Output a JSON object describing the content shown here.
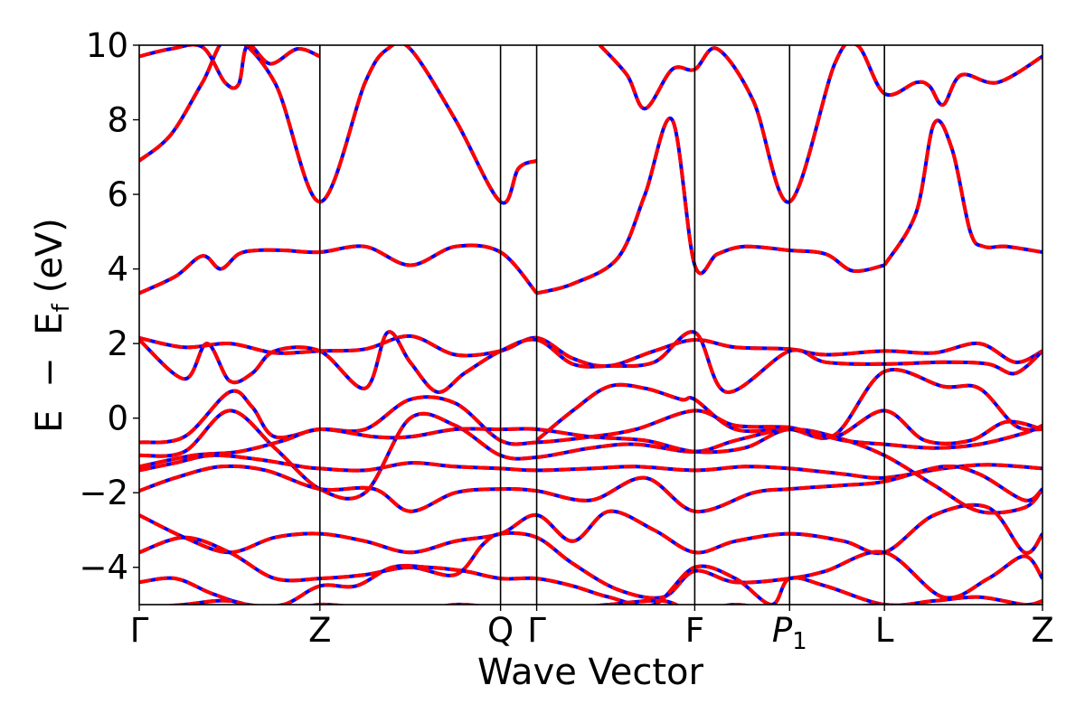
{
  "chart_data": {
    "type": "line",
    "xlabel": "Wave Vector",
    "ylabel": {
      "E": "E",
      "minus": "−",
      "Ef_main": "E",
      "Ef_sub": "f",
      "unit": "(eV)"
    },
    "ylim": [
      -5,
      10
    ],
    "yticks": [
      -4,
      -2,
      0,
      2,
      4,
      6,
      8,
      10
    ],
    "ytick_labels": [
      "−4",
      "−2",
      "0",
      "2",
      "4",
      "6",
      "8",
      "10"
    ],
    "xlim": [
      0,
      10
    ],
    "kpoints": [
      {
        "label": "Γ",
        "x": 0.0
      },
      {
        "label": "Z",
        "x": 2.0
      },
      {
        "label": "Q",
        "x": 4.0
      },
      {
        "label": "Γ",
        "x": 4.4
      },
      {
        "label": "F",
        "x": 6.15
      },
      {
        "label": "P1",
        "main": "P",
        "sub": "1",
        "italic": true,
        "x": 7.2
      },
      {
        "label": "L",
        "x": 8.25
      },
      {
        "label": "Z",
        "x": 10.0
      }
    ],
    "grid": false,
    "series_style": [
      {
        "color": "#0000ff",
        "dash": "solid"
      },
      {
        "color": "#ff0000",
        "dash": "dashed"
      }
    ],
    "bands": [
      {
        "x": [
          0,
          0.35,
          0.7,
          1.0,
          1.5,
          2.0,
          2.5,
          2.75,
          3.0,
          3.5,
          4.0,
          4.2,
          4.4
        ],
        "y": [
          6.9,
          7.6,
          9.0,
          10.2,
          9.0,
          5.8,
          9.0,
          9.9,
          9.9,
          8.0,
          5.8,
          6.7,
          6.9
        ]
      },
      {
        "x": [
          0,
          0.35,
          0.7,
          0.95,
          1.1,
          1.2,
          1.45,
          1.75,
          2.0
        ],
        "y": [
          9.7,
          9.9,
          9.95,
          9.0,
          8.95,
          10.0,
          9.5,
          9.9,
          9.7
        ]
      },
      {
        "x": [
          4.4,
          4.8,
          5.3,
          5.6,
          5.9,
          6.15,
          6.4,
          6.7,
          7.2,
          7.6,
          7.9,
          8.25
        ],
        "y": [
          3.35,
          3.6,
          4.3,
          6.0,
          8.0,
          4.1,
          4.4,
          4.6,
          4.5,
          4.4,
          3.95,
          4.1
        ]
      },
      {
        "x": [
          5.1,
          5.4,
          5.6,
          5.9,
          6.15,
          6.4,
          6.8,
          7.2,
          7.7,
          7.95,
          8.25,
          8.6,
          8.75,
          8.9,
          9.1,
          9.5,
          10.0
        ],
        "y": [
          10.0,
          9.2,
          8.3,
          9.35,
          9.35,
          9.9,
          8.5,
          5.8,
          9.5,
          10.0,
          8.7,
          9.0,
          8.9,
          8.4,
          9.2,
          9.0,
          9.7
        ]
      },
      {
        "x": [
          8.25,
          8.6,
          8.8,
          9.0,
          9.2,
          9.35,
          9.6,
          10.0
        ],
        "y": [
          4.1,
          5.5,
          7.9,
          7.2,
          5.0,
          4.6,
          4.6,
          4.45
        ]
      },
      {
        "x": [
          0,
          0.4,
          0.7,
          0.9,
          1.1,
          1.3,
          1.6,
          2.0,
          2.5,
          3.0,
          3.5,
          4.0,
          4.4
        ],
        "y": [
          3.35,
          3.8,
          4.35,
          4.0,
          4.4,
          4.5,
          4.5,
          4.45,
          4.6,
          4.1,
          4.6,
          4.45,
          3.35
        ]
      },
      {
        "x": [
          0,
          0.5,
          1.0,
          1.5,
          2.0,
          2.5,
          3.0,
          3.5,
          4.0,
          4.4,
          4.8,
          5.2,
          5.7,
          6.15,
          6.6,
          7.2,
          7.6,
          8.25,
          8.8,
          9.3,
          9.7,
          10.0
        ],
        "y": [
          2.15,
          1.9,
          2.0,
          1.75,
          1.8,
          1.85,
          2.2,
          1.7,
          1.8,
          2.15,
          1.6,
          1.4,
          1.8,
          2.1,
          1.9,
          1.85,
          1.7,
          1.8,
          1.75,
          2.0,
          1.5,
          1.8
        ]
      },
      {
        "x": [
          0,
          0.5,
          0.75,
          1.0,
          1.25,
          1.5,
          2.0,
          2.5,
          2.75,
          3.0,
          3.3,
          3.6,
          4.0,
          4.4,
          4.8,
          5.2,
          5.7,
          6.15,
          6.5,
          7.2,
          7.6,
          8.25,
          8.9,
          9.4,
          9.7,
          10.0
        ],
        "y": [
          2.1,
          1.05,
          2.0,
          1.0,
          1.2,
          1.8,
          1.8,
          0.8,
          2.3,
          1.5,
          0.7,
          1.2,
          1.8,
          2.1,
          1.45,
          1.4,
          1.5,
          2.3,
          0.7,
          1.8,
          1.5,
          1.45,
          1.5,
          1.45,
          1.2,
          1.8
        ]
      },
      {
        "x": [
          4.4,
          4.8,
          5.2,
          5.6,
          6.0,
          6.15,
          6.6,
          7.2,
          7.7,
          8.25,
          8.9,
          9.3,
          9.7,
          10.0
        ],
        "y": [
          -0.6,
          0.2,
          0.85,
          0.8,
          0.5,
          0.5,
          -0.3,
          -0.3,
          -0.45,
          1.25,
          0.85,
          0.8,
          -0.2,
          -0.3
        ]
      },
      {
        "x": [
          0,
          0.5,
          1.0,
          1.25,
          1.5,
          2.0,
          2.5,
          3.0,
          3.5,
          4.0,
          4.4,
          5.0,
          5.5,
          6.15,
          6.6,
          7.2,
          7.7,
          8.25,
          8.7,
          9.2,
          9.6,
          10.0
        ],
        "y": [
          -0.65,
          -0.5,
          0.7,
          0.3,
          -0.5,
          -0.3,
          -0.3,
          0.5,
          0.4,
          -0.6,
          -0.65,
          -0.5,
          -0.3,
          0.2,
          -0.2,
          -0.25,
          -0.5,
          0.2,
          -0.6,
          -0.6,
          -0.1,
          -0.3
        ]
      },
      {
        "x": [
          0,
          0.5,
          1.0,
          1.5,
          2.0,
          2.5,
          3.0,
          3.5,
          4.0,
          4.4,
          5.0,
          5.5,
          6.15,
          6.6,
          7.2,
          7.7,
          8.25,
          8.8,
          9.3,
          9.8,
          10.0
        ],
        "y": [
          -1.0,
          -0.9,
          0.2,
          -0.8,
          -1.9,
          -2.0,
          0.0,
          -0.2,
          -1.0,
          -1.05,
          -0.8,
          -0.7,
          -0.9,
          -0.6,
          -0.3,
          -0.5,
          -1.0,
          -1.8,
          -2.5,
          -2.4,
          -1.9
        ]
      },
      {
        "x": [
          0,
          0.6,
          1.1,
          1.6,
          2.0,
          2.6,
          3.0,
          3.5,
          4.0,
          4.4,
          5.0,
          5.6,
          6.15,
          6.7,
          7.2,
          7.8,
          8.25,
          8.8,
          9.3,
          9.8,
          10.0
        ],
        "y": [
          -1.3,
          -1.0,
          -0.9,
          -0.6,
          -0.3,
          -0.5,
          -0.5,
          -0.3,
          -0.3,
          -0.3,
          -0.5,
          -0.6,
          -0.9,
          -0.8,
          -0.3,
          -0.6,
          -0.7,
          -0.8,
          -0.7,
          -0.4,
          -0.2
        ]
      },
      {
        "x": [
          0,
          0.4,
          0.8,
          1.3,
          1.8,
          2.0,
          2.5,
          3.0,
          3.5,
          4.0,
          4.4,
          5.0,
          5.5,
          6.15,
          6.7,
          7.2,
          7.8,
          8.25,
          8.9,
          9.4,
          10.0
        ],
        "y": [
          -1.4,
          -1.2,
          -1.0,
          -1.1,
          -1.3,
          -1.35,
          -1.4,
          -1.2,
          -1.3,
          -1.35,
          -1.4,
          -1.35,
          -1.3,
          -1.4,
          -1.3,
          -1.35,
          -1.5,
          -1.6,
          -1.35,
          -1.25,
          -1.35
        ]
      },
      {
        "x": [
          0,
          0.4,
          0.9,
          1.4,
          2.0,
          2.6,
          3.0,
          3.5,
          4.0,
          4.4,
          5.0,
          5.6,
          6.15,
          6.8,
          7.2,
          7.8,
          8.25,
          8.9,
          9.3,
          9.8,
          10.0
        ],
        "y": [
          -1.95,
          -1.6,
          -1.3,
          -1.4,
          -1.9,
          -1.9,
          -2.5,
          -2.0,
          -1.9,
          -1.95,
          -2.2,
          -1.6,
          -2.5,
          -2.0,
          -1.9,
          -1.8,
          -1.7,
          -1.3,
          -1.5,
          -2.2,
          -1.9
        ]
      },
      {
        "x": [
          0,
          0.5,
          1.0,
          1.5,
          2.0,
          2.5,
          3.0,
          3.5,
          4.0,
          4.4,
          4.8,
          5.2,
          5.7,
          6.15,
          6.6,
          7.2,
          7.8,
          8.25,
          8.8,
          9.4,
          9.8,
          10.0
        ],
        "y": [
          -2.6,
          -3.2,
          -3.6,
          -3.2,
          -3.1,
          -3.3,
          -3.6,
          -3.3,
          -3.1,
          -2.6,
          -3.3,
          -2.5,
          -3.0,
          -3.6,
          -3.3,
          -3.1,
          -3.3,
          -3.6,
          -2.6,
          -2.4,
          -3.6,
          -3.1
        ]
      },
      {
        "x": [
          0,
          0.5,
          1.0,
          1.5,
          2.0,
          2.5,
          3.0,
          3.5,
          3.8,
          4.0,
          4.4,
          4.8,
          5.3,
          5.8,
          6.15,
          6.6,
          7.2,
          7.6,
          8.25,
          8.9,
          9.4,
          9.8,
          10.0
        ],
        "y": [
          -3.6,
          -3.2,
          -3.6,
          -4.3,
          -4.3,
          -4.2,
          -4.0,
          -4.2,
          -3.4,
          -3.1,
          -3.2,
          -3.9,
          -4.6,
          -4.8,
          -4.1,
          -4.4,
          -4.3,
          -4.1,
          -3.6,
          -4.8,
          -4.3,
          -3.7,
          -4.3
        ]
      },
      {
        "x": [
          0,
          0.4,
          0.8,
          1.2,
          1.6,
          2.0,
          2.4,
          2.8,
          3.2,
          3.6,
          4.0,
          4.4,
          4.8,
          5.2,
          5.7,
          6.15,
          6.6,
          7.0,
          7.2,
          7.6,
          8.25,
          8.8,
          9.3,
          9.8,
          10.0
        ],
        "y": [
          -4.4,
          -4.3,
          -4.7,
          -5.0,
          -5.0,
          -4.5,
          -4.5,
          -4.0,
          -4.0,
          -4.1,
          -4.3,
          -4.3,
          -4.5,
          -4.8,
          -5.0,
          -4.0,
          -4.3,
          -5.0,
          -4.3,
          -4.5,
          -5.0,
          -4.9,
          -4.8,
          -5.0,
          -4.9
        ]
      },
      {
        "x": [
          0,
          0.5,
          1.0,
          1.5,
          2.0,
          2.5,
          3.0,
          3.5,
          4.0,
          4.4,
          4.8,
          5.2,
          5.8,
          6.15,
          6.6,
          7.2,
          7.8,
          8.25,
          8.8,
          9.4,
          10.0
        ],
        "y": [
          -5.1,
          -5.0,
          -4.9,
          -5.2,
          -5.0,
          -5.1,
          -5.2,
          -5.0,
          -5.1,
          -5.2,
          -5.1,
          -5.0,
          -4.9,
          -5.2,
          -5.0,
          -5.2,
          -5.1,
          -5.0,
          -5.2,
          -5.1,
          -5.2
        ]
      }
    ]
  }
}
